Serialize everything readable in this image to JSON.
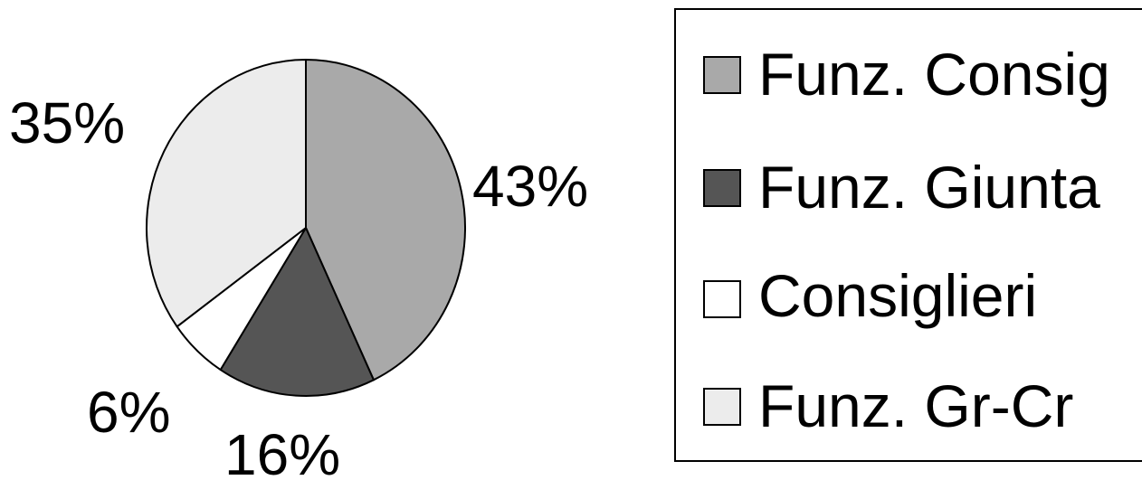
{
  "chart_data": {
    "type": "pie",
    "categories": [
      "Funz. Consig",
      "Funz. Giunta",
      "Consiglieri",
      "Funz. Gr-Cr"
    ],
    "values": [
      43,
      16,
      6,
      35
    ],
    "labels": [
      "43%",
      "16%",
      "6%",
      "35%"
    ],
    "colors": [
      "#a9a9a9",
      "#555555",
      "#ffffff",
      "#ececec"
    ],
    "legend": {
      "placement": "right",
      "entries": [
        "Funz. Consig",
        "Funz. Giunta",
        "Consiglieri",
        "Funz. Gr-Cr"
      ]
    }
  }
}
